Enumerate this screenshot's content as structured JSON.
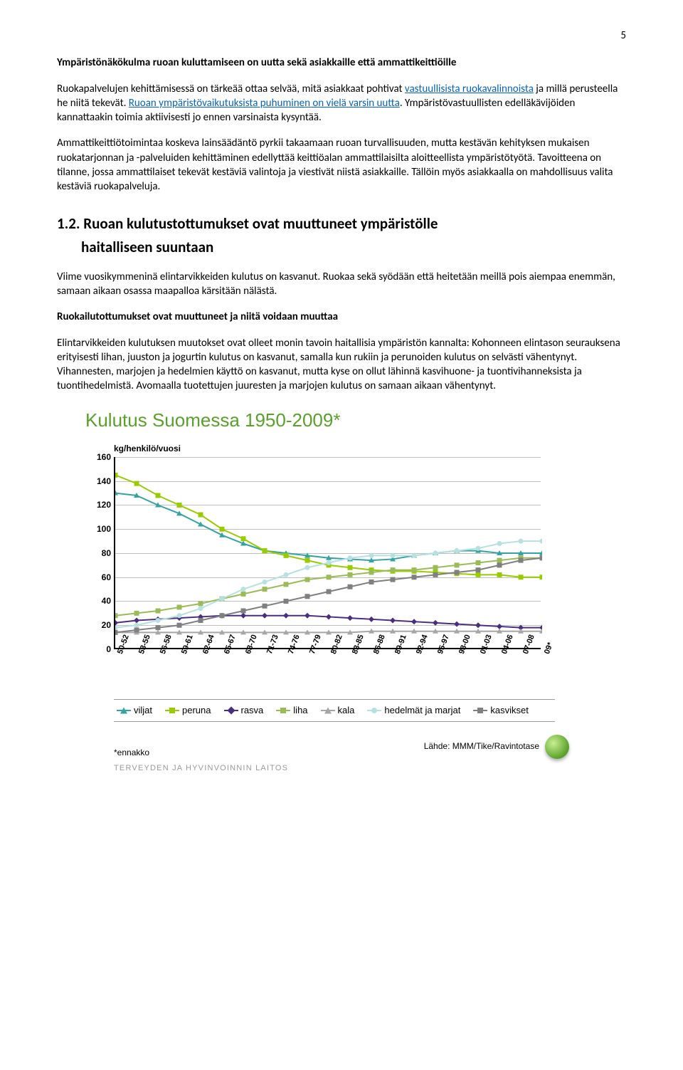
{
  "page_number": "5",
  "heading1": "Ympäristönäkökulma ruoan kuluttamiseen on uutta sekä asiakkaille että ammattikeittiöille",
  "para1a": "Ruokapalvelujen kehittämisessä on tärkeää ottaa selvää, mitä asiakkaat pohtivat ",
  "para1_link1": "vastuullisista ruokavalinnoista",
  "para1b": " ja millä perusteella he niitä tekevät. ",
  "para1_link2": "Ruoan ympäristövaikutuksista puhuminen on vielä varsin uutta",
  "para1c": ". Ympäristövastuullisten edelläkävijöiden kannattaakin toimia aktiivisesti jo ennen varsinaista kysyntää.",
  "para2": "Ammattikeittiötoimintaa koskeva lainsäädäntö pyrkii takaamaan ruoan turvallisuuden, mutta kestävän kehityksen mukaisen ruokatarjonnan ja -palveluiden kehittäminen edellyttää keittiöalan ammattilaisilta aloitteellista ympäristötyötä. Tavoitteena on tilanne, jossa ammattilaiset tekevät kestäviä valintoja ja viestivät niistä asiakkaille. Tällöin myös asiakkaalla on mahdollisuus valita kestäviä ruokapalveluja.",
  "h2a": "1.2. Ruoan kulutustottumukset ovat muuttuneet ympäristölle",
  "h2b": "haitalliseen suuntaan",
  "para3": "Viime vuosikymmeninä elintarvikkeiden kulutus on kasvanut. Ruokaa sekä syödään että heitetään meillä pois aiempaa enemmän, samaan aikaan osassa maapalloa kärsitään nälästä.",
  "heading2": "Ruokailutottumukset ovat muuttuneet ja niitä voidaan muuttaa",
  "para4": "Elintarvikkeiden kulutuksen muutokset ovat olleet monin tavoin haitallisia ympäristön kannalta: Kohonneen elintason seurauksena erityisesti lihan, juuston ja jogurtin kulutus on kasvanut, samalla kun rukiin ja perunoiden kulutus on selvästi vähentynyt. Vihannesten, marjojen ja hedelmien käyttö on kasvanut, mutta kyse on ollut lähinnä kasvihuone- ja tuontivihanneksista ja tuontihedelmistä. Avomaalla tuotettujen juuresten ja marjojen kulutus on samaan aikaan vähentynyt.",
  "chart": {
    "title": "Kulutus Suomessa 1950-2009*",
    "y_axis": "kg/henkilö/vuosi",
    "ylim": [
      0,
      160
    ],
    "ytick_step": 20,
    "yticks": [
      "0",
      "20",
      "40",
      "60",
      "80",
      "100",
      "120",
      "140",
      "160"
    ],
    "xticks": [
      "50-52",
      "53-55",
      "56-58",
      "59-61",
      "62-64",
      "65-67",
      "68-70",
      "71-73",
      "74-76",
      "77-79",
      "80-82",
      "83-85",
      "86-88",
      "89-91",
      "92-94",
      "95-97",
      "98-00",
      "01-03",
      "04-06",
      "07-08",
      "09*"
    ],
    "grid_color": "#c0c0c0",
    "background": "#ffffff",
    "series": [
      {
        "name": "viljat",
        "color": "#33a3a3",
        "marker": "triangle",
        "values": [
          130,
          128,
          120,
          113,
          104,
          95,
          88,
          82,
          80,
          78,
          76,
          75,
          74,
          75,
          78,
          80,
          82,
          82,
          80,
          80,
          80
        ]
      },
      {
        "name": "peruna",
        "color": "#99cc00",
        "marker": "square",
        "values": [
          145,
          138,
          128,
          120,
          112,
          100,
          92,
          82,
          78,
          74,
          70,
          68,
          66,
          65,
          65,
          64,
          63,
          62,
          62,
          60,
          60
        ]
      },
      {
        "name": "rasva",
        "color": "#4a2d7f",
        "marker": "diamond",
        "values": [
          22,
          24,
          25,
          26,
          27,
          28,
          28,
          28,
          28,
          28,
          27,
          26,
          25,
          24,
          23,
          22,
          21,
          20,
          19,
          18,
          18
        ]
      },
      {
        "name": "liha",
        "color": "#9bbb59",
        "marker": "square",
        "values": [
          28,
          30,
          32,
          35,
          38,
          42,
          46,
          50,
          54,
          58,
          60,
          62,
          64,
          66,
          66,
          68,
          70,
          72,
          74,
          76,
          76
        ]
      },
      {
        "name": "kala",
        "color": "#a6a6a6",
        "marker": "triangle",
        "values": [
          14,
          14,
          14,
          14,
          14,
          14,
          14,
          14,
          14,
          14,
          14,
          14,
          15,
          15,
          15,
          15,
          15,
          15,
          15,
          15,
          15
        ]
      },
      {
        "name": "hedelmät ja marjat",
        "color": "#b7e1e1",
        "marker": "circle",
        "values": [
          18,
          20,
          24,
          28,
          34,
          42,
          50,
          56,
          62,
          68,
          72,
          76,
          78,
          78,
          78,
          80,
          82,
          84,
          88,
          90,
          90
        ]
      },
      {
        "name": "kasvikset",
        "color": "#808080",
        "marker": "square",
        "values": [
          14,
          16,
          18,
          20,
          24,
          28,
          32,
          36,
          40,
          44,
          48,
          52,
          56,
          58,
          60,
          62,
          64,
          66,
          70,
          74,
          76
        ]
      }
    ],
    "footer_left": "*ennakko",
    "footer_right": "Lähde: MMM/Tike/Ravintotase",
    "org": "TERVEYDEN JA HYVINVOINNIN LAITOS"
  }
}
